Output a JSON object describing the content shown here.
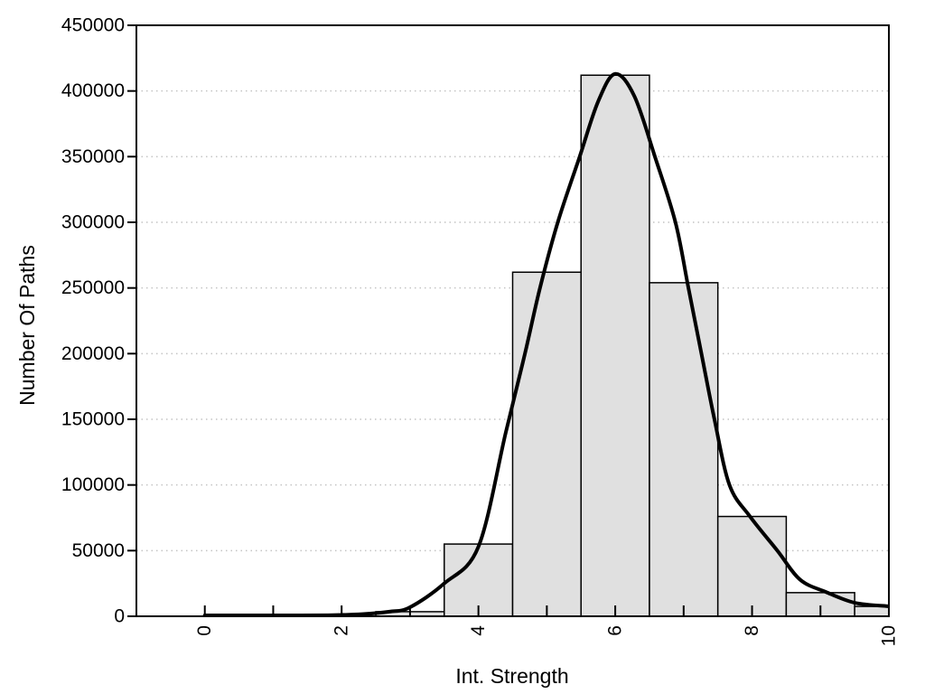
{
  "figure": {
    "background": "#ffffff"
  },
  "chart_data": {
    "type": "bar",
    "subtype": "histogram_with_density_curve",
    "title": "",
    "xlabel": "Int. Strength",
    "ylabel": "Number Of Paths",
    "xlim": [
      -1,
      10
    ],
    "ylim": [
      0,
      450000
    ],
    "grid": {
      "horizontal": "dotted",
      "vertical": "none"
    },
    "x_ticks": [
      0,
      1,
      2,
      3,
      4,
      5,
      6,
      7,
      8,
      9,
      10
    ],
    "x_labeled_ticks": [
      0,
      2,
      4,
      6,
      8,
      10
    ],
    "x_tick_labels": [
      "0",
      "2",
      "4",
      "6",
      "8",
      "10"
    ],
    "x_tick_label_rotation": -90,
    "y_ticks": [
      0,
      50000,
      100000,
      150000,
      200000,
      250000,
      300000,
      350000,
      400000,
      450000
    ],
    "y_tick_labels": [
      "0",
      "50000",
      "100000",
      "150000",
      "200000",
      "250000",
      "300000",
      "350000",
      "400000",
      "450000"
    ],
    "y_gridline_values": [
      50000,
      100000,
      150000,
      200000,
      250000,
      300000,
      350000,
      400000
    ],
    "bars": {
      "bin_width": 1,
      "bins": [
        {
          "x0": 2.5,
          "x1": 3.5,
          "value": 3500
        },
        {
          "x0": 3.5,
          "x1": 4.5,
          "value": 55000
        },
        {
          "x0": 4.5,
          "x1": 5.5,
          "value": 262000
        },
        {
          "x0": 5.5,
          "x1": 6.5,
          "value": 412000
        },
        {
          "x0": 6.5,
          "x1": 7.5,
          "value": 254000
        },
        {
          "x0": 7.5,
          "x1": 8.5,
          "value": 76000
        },
        {
          "x0": 8.5,
          "x1": 9.5,
          "value": 18000
        },
        {
          "x0": 9.5,
          "x1": 10.5,
          "value": 7500
        }
      ]
    },
    "curve": {
      "name": "density-fit",
      "points": [
        [
          0.0,
          300
        ],
        [
          0.6,
          350
        ],
        [
          1.2,
          500
        ],
        [
          1.8,
          800
        ],
        [
          2.3,
          1600
        ],
        [
          2.7,
          3500
        ],
        [
          3.0,
          6900
        ],
        [
          3.5,
          25000
        ],
        [
          4.0,
          53000
        ],
        [
          4.4,
          140000
        ],
        [
          4.68,
          200000
        ],
        [
          4.9,
          250000
        ],
        [
          5.16,
          300000
        ],
        [
          5.48,
          350000
        ],
        [
          5.75,
          392000
        ],
        [
          6.0,
          413000
        ],
        [
          6.28,
          396000
        ],
        [
          6.58,
          350000
        ],
        [
          6.88,
          300000
        ],
        [
          7.07,
          250000
        ],
        [
          7.26,
          200000
        ],
        [
          7.45,
          150000
        ],
        [
          7.67,
          100000
        ],
        [
          7.97,
          76000
        ],
        [
          8.37,
          50000
        ],
        [
          8.7,
          28000
        ],
        [
          9.08,
          18500
        ],
        [
          9.5,
          10300
        ],
        [
          10.0,
          7600
        ]
      ]
    },
    "colors": {
      "bar_fill": "#e0e0e0",
      "bar_border": "#000000",
      "curve": "#000000",
      "grid": "#c4c4c4",
      "axis": "#000000",
      "text": "#000000",
      "background": "#ffffff"
    }
  }
}
